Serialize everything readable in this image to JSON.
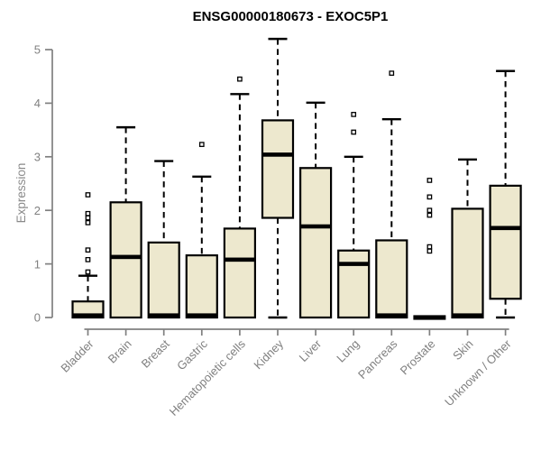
{
  "chart_data": {
    "type": "boxplot",
    "title": "ENSG00000180673 - EXOC5P1",
    "ylabel": "Expression",
    "xlabel": "",
    "ylim": [
      0,
      5
    ],
    "yticks": [
      0,
      1,
      2,
      3,
      4,
      5
    ],
    "grid": false,
    "legend": "none",
    "categories": [
      "Bladder",
      "Brain",
      "Breast",
      "Gastric",
      "Hematopoietic cells",
      "Kidney",
      "Liver",
      "Lung",
      "Pancreas",
      "Prostate",
      "Skin",
      "Unknown / Other"
    ],
    "boxes": [
      {
        "category": "Bladder",
        "whisker_low": 0,
        "q1": 0,
        "median": 0.02,
        "q3": 0.3,
        "whisker_high": 0.78,
        "outliers": [
          0.85,
          1.08,
          1.26,
          1.77,
          1.86,
          1.94,
          2.29
        ]
      },
      {
        "category": "Brain",
        "whisker_low": 0,
        "q1": 0,
        "median": 1.13,
        "q3": 2.15,
        "whisker_high": 3.55,
        "outliers": []
      },
      {
        "category": "Breast",
        "whisker_low": 0,
        "q1": 0,
        "median": 0.02,
        "q3": 1.4,
        "whisker_high": 2.92,
        "outliers": []
      },
      {
        "category": "Gastric",
        "whisker_low": 0,
        "q1": 0,
        "median": 0.02,
        "q3": 1.16,
        "whisker_high": 2.63,
        "outliers": [
          3.23
        ]
      },
      {
        "category": "Hematopoietic cells",
        "whisker_low": 0,
        "q1": 0,
        "median": 1.08,
        "q3": 1.66,
        "whisker_high": 4.17,
        "outliers": [
          4.45
        ]
      },
      {
        "category": "Kidney",
        "whisker_low": 0,
        "q1": 1.86,
        "median": 3.04,
        "q3": 3.68,
        "whisker_high": 5.2,
        "outliers": []
      },
      {
        "category": "Liver",
        "whisker_low": 0,
        "q1": 0,
        "median": 1.7,
        "q3": 2.79,
        "whisker_high": 4.01,
        "outliers": []
      },
      {
        "category": "Lung",
        "whisker_low": 0,
        "q1": 0,
        "median": 1.0,
        "q3": 1.25,
        "whisker_high": 3.0,
        "outliers": [
          3.46,
          3.79
        ]
      },
      {
        "category": "Pancreas",
        "whisker_low": 0,
        "q1": 0,
        "median": 0.02,
        "q3": 1.44,
        "whisker_high": 3.7,
        "outliers": [
          4.56
        ]
      },
      {
        "category": "Prostate",
        "whisker_low": 0,
        "q1": 0,
        "median": 0.02,
        "q3": 0.02,
        "whisker_high": 0.02,
        "outliers": [
          1.24,
          1.32,
          1.91,
          2.0,
          2.25,
          2.56
        ]
      },
      {
        "category": "Skin",
        "whisker_low": 0,
        "q1": 0,
        "median": 0.02,
        "q3": 2.03,
        "whisker_high": 2.95,
        "outliers": []
      },
      {
        "category": "Unknown / Other",
        "whisker_low": 0,
        "q1": 0.35,
        "median": 1.67,
        "q3": 2.46,
        "whisker_high": 4.6,
        "outliers": []
      }
    ],
    "colors": {
      "box_fill": "#EDE8CE",
      "box_border": "#000000",
      "median": "#000000",
      "whisker": "#000000",
      "outlier_stroke": "#000000",
      "axis": "#808080",
      "tick_label": "#808080",
      "title": "#000000",
      "background": "#FFFFFF"
    }
  }
}
